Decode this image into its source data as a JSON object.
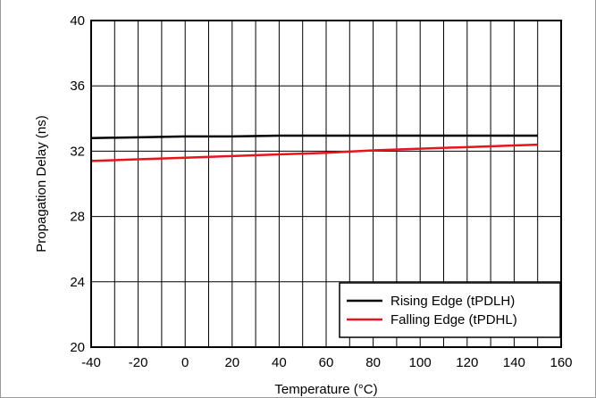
{
  "chart_data": {
    "type": "line",
    "xlabel": "Temperature (°C)",
    "ylabel": "Propagation Delay (ns)",
    "xlim": [
      -40,
      160
    ],
    "ylim": [
      20,
      40
    ],
    "x_ticks": [
      "-40",
      "-20",
      "0",
      "20",
      "40",
      "60",
      "80",
      "100",
      "120",
      "140",
      "160"
    ],
    "y_ticks": [
      "20",
      "24",
      "28",
      "32",
      "36",
      "40"
    ],
    "grid": true,
    "legend_position": "bottom-right",
    "series": [
      {
        "name": "Rising Edge (tPDLH)",
        "color": "#000000",
        "x": [
          -40,
          -20,
          0,
          20,
          40,
          60,
          80,
          100,
          120,
          140,
          150
        ],
        "y": [
          32.8,
          32.85,
          32.9,
          32.9,
          32.95,
          32.95,
          32.95,
          32.95,
          32.95,
          32.95,
          32.95
        ]
      },
      {
        "name": "Falling Edge (tPDHL)",
        "color": "#e8141b",
        "x": [
          -40,
          -20,
          0,
          20,
          40,
          60,
          80,
          100,
          120,
          140,
          150
        ],
        "y": [
          31.4,
          31.5,
          31.6,
          31.7,
          31.8,
          31.9,
          32.05,
          32.15,
          32.25,
          32.35,
          32.4
        ]
      }
    ]
  }
}
